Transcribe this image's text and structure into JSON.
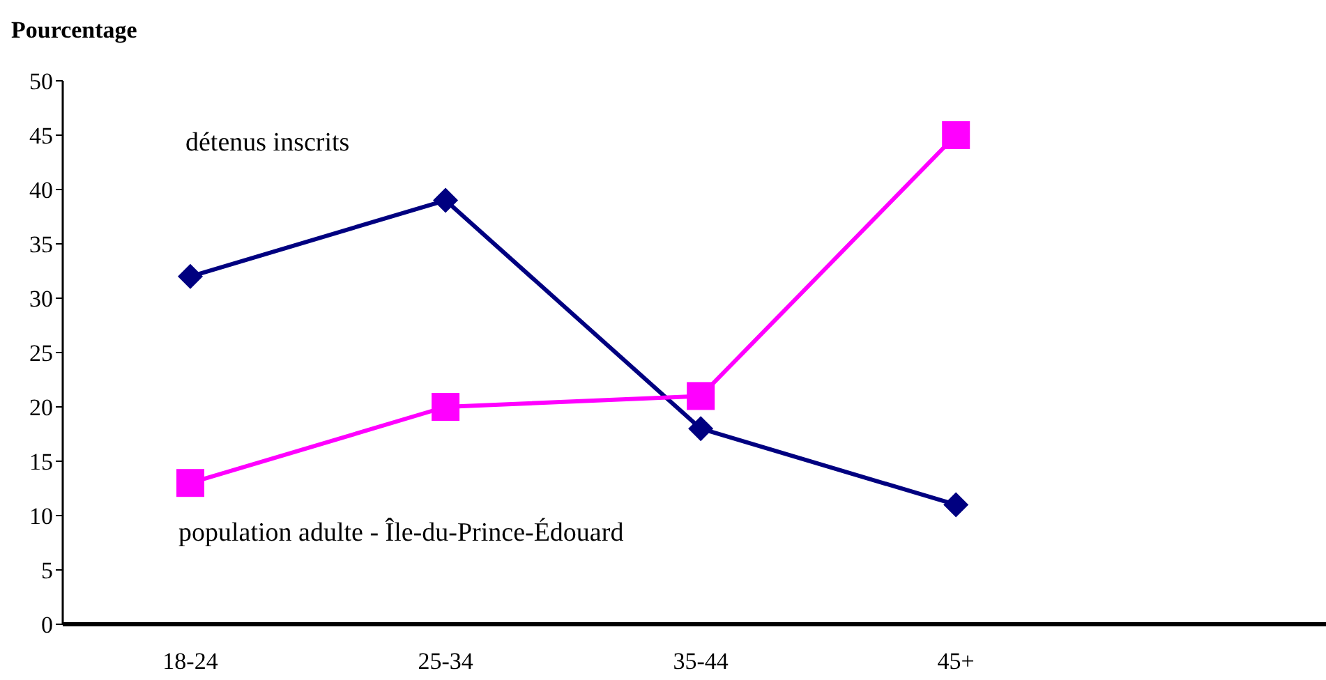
{
  "chart_data": {
    "type": "line",
    "ylabel": "Pourcentage",
    "categories": [
      "18-24",
      "25-34",
      "35-44",
      "45+"
    ],
    "series": [
      {
        "name": "détenus inscrits",
        "color": "#000080",
        "marker": "diamond",
        "values": [
          32,
          39,
          18,
          11
        ]
      },
      {
        "name": "population adulte - Île-du-Prince-Édouard",
        "color": "#ff00ff",
        "marker": "square",
        "values": [
          13,
          20,
          21,
          45
        ]
      }
    ],
    "ylim": [
      0,
      50
    ],
    "yticks": [
      0,
      5,
      10,
      15,
      20,
      25,
      30,
      35,
      40,
      45,
      50
    ],
    "grid": false,
    "legend": false
  }
}
